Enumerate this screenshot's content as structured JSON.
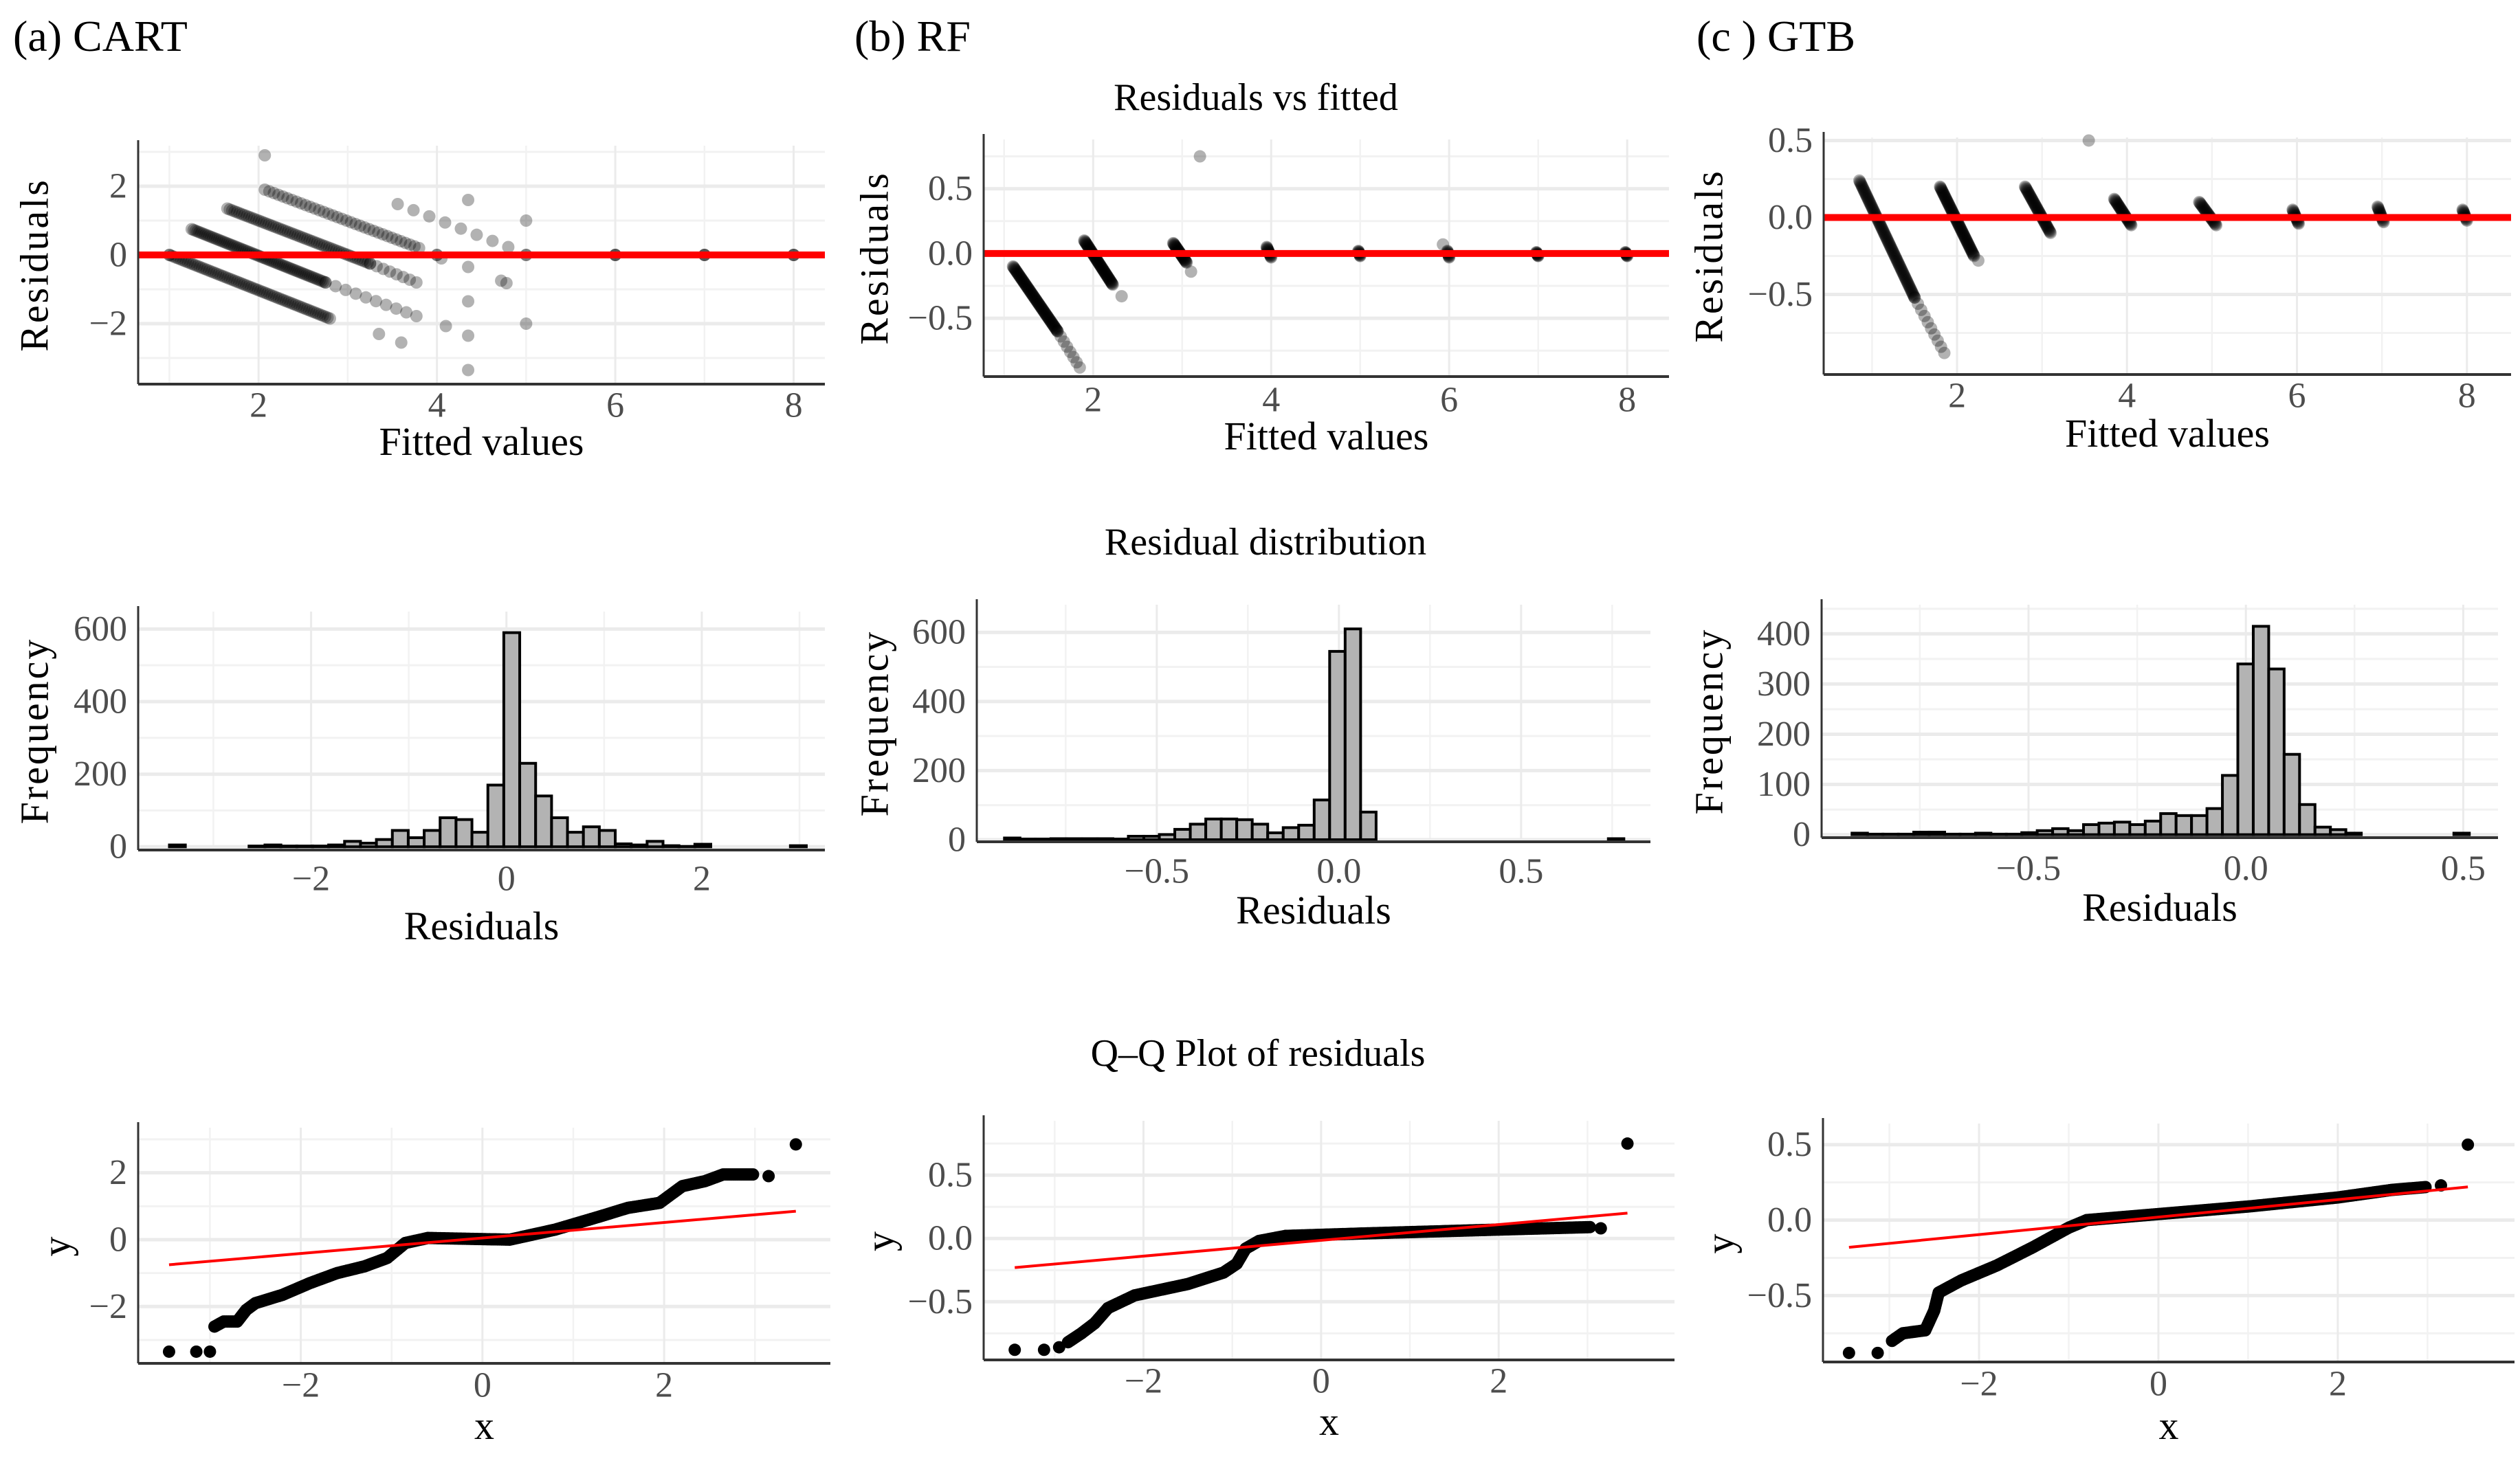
{
  "panel_titles": [
    "(a) CART",
    "(b) RF",
    "(c ) GTB"
  ],
  "section_titles": {
    "residuals_vs_fitted": "Residuals vs fitted",
    "residual_distribution": "Residual distribution",
    "qq_plot": "Q–Q Plot of residuals"
  },
  "colors": {
    "points": "#000000",
    "reference_line": "#ff0000",
    "bar_fill": "#b3b3b3",
    "bar_stroke": "#000000",
    "grid": "#ebebeb",
    "tick_text": "#4d4d4d"
  },
  "chart_data": [
    {
      "type": "scatter",
      "model": "CART",
      "section": "Residuals vs fitted",
      "xlabel": "Fitted values",
      "ylabel": "Residuals",
      "xlim": [
        0.65,
        8.35
      ],
      "ylim": [
        -3.76,
        3.18
      ],
      "xticks": [
        2,
        4,
        6,
        8
      ],
      "xtick_labels": [
        "2",
        "4",
        "6",
        "8"
      ],
      "yticks": [
        -2,
        0,
        2
      ],
      "ytick_labels": [
        "−2",
        "0",
        "2"
      ],
      "hline": 0,
      "bands": [
        {
          "from": [
            1.0,
            0.0
          ],
          "to": [
            2.8,
            -1.85
          ],
          "n": 70
        },
        {
          "from": [
            1.25,
            0.75
          ],
          "to": [
            2.75,
            -0.8
          ],
          "n": 70
        },
        {
          "from": [
            2.75,
            -0.8
          ],
          "to": [
            3.77,
            -1.78
          ],
          "n": 10
        },
        {
          "from": [
            1.65,
            1.35
          ],
          "to": [
            3.25,
            -0.25
          ],
          "n": 60
        },
        {
          "from": [
            3.25,
            -0.25
          ],
          "to": [
            3.77,
            -0.8
          ],
          "n": 8
        },
        {
          "from": [
            2.07,
            1.9
          ],
          "to": [
            3.8,
            0.2
          ],
          "n": 35
        },
        {
          "from": [
            3.56,
            1.48
          ],
          "to": [
            4.8,
            0.23
          ],
          "n": 8
        }
      ],
      "points": [
        [
          2.07,
          2.9
        ],
        [
          4.35,
          1.6
        ],
        [
          5.0,
          1.0
        ],
        [
          4.35,
          -0.35
        ],
        [
          4.72,
          -0.75
        ],
        [
          4.78,
          -0.82
        ],
        [
          4.35,
          -1.35
        ],
        [
          4.35,
          -2.35
        ],
        [
          4.35,
          -3.35
        ],
        [
          4.1,
          -2.07
        ],
        [
          5.0,
          -2.0
        ],
        [
          3.35,
          -2.3
        ],
        [
          3.6,
          -2.55
        ],
        [
          4.05,
          -0.1
        ],
        [
          1,
          0
        ],
        [
          4,
          0
        ],
        [
          5,
          0
        ],
        [
          6,
          0
        ],
        [
          7,
          0
        ],
        [
          8,
          0
        ],
        [
          4,
          0
        ],
        [
          5,
          0
        ],
        [
          6,
          0
        ],
        [
          7,
          0
        ],
        [
          8,
          0
        ],
        [
          6,
          0
        ],
        [
          7,
          0
        ],
        [
          8,
          0
        ]
      ]
    },
    {
      "type": "scatter",
      "model": "RF",
      "section": "Residuals vs fitted",
      "xlabel": "Fitted values",
      "ylabel": "Residuals",
      "xlim": [
        0.77,
        8.47
      ],
      "ylim": [
        -0.95,
        0.88
      ],
      "xticks": [
        2,
        4,
        6,
        8
      ],
      "xtick_labels": [
        "2",
        "4",
        "6",
        "8"
      ],
      "yticks": [
        -0.5,
        0,
        0.5
      ],
      "ytick_labels": [
        "−0.5",
        "0.0",
        "0.5"
      ],
      "hline": 0,
      "bands": [
        {
          "from": [
            1.1,
            -0.1
          ],
          "to": [
            1.6,
            -0.6
          ],
          "n": 80
        },
        {
          "from": [
            1.6,
            -0.6
          ],
          "to": [
            1.85,
            -0.88
          ],
          "n": 8
        },
        {
          "from": [
            1.9,
            0.1
          ],
          "to": [
            2.22,
            -0.24
          ],
          "n": 60
        },
        {
          "from": [
            2.9,
            0.08
          ],
          "to": [
            3.05,
            -0.07
          ],
          "n": 30
        },
        {
          "from": [
            3.95,
            0.05
          ],
          "to": [
            4.0,
            -0.03
          ],
          "n": 15
        },
        {
          "from": [
            4.98,
            0.02
          ],
          "to": [
            5.0,
            -0.02
          ],
          "n": 10
        },
        {
          "from": [
            5.98,
            0.02
          ],
          "to": [
            6.0,
            -0.03
          ],
          "n": 10
        },
        {
          "from": [
            6.98,
            0.01
          ],
          "to": [
            7.0,
            -0.02
          ],
          "n": 10
        },
        {
          "from": [
            7.98,
            0.01
          ],
          "to": [
            8.0,
            -0.02
          ],
          "n": 10
        }
      ],
      "points": [
        [
          2.32,
          -0.33
        ],
        [
          3.1,
          -0.14
        ],
        [
          3.2,
          0.75
        ],
        [
          5.93,
          0.07
        ]
      ]
    },
    {
      "type": "scatter",
      "model": "GTB",
      "section": "Residuals vs fitted",
      "xlabel": "Fitted values",
      "ylabel": "Residuals",
      "xlim": [
        0.43,
        8.52
      ],
      "ylim": [
        -1.02,
        0.52
      ],
      "xticks": [
        2,
        4,
        6,
        8
      ],
      "xtick_labels": [
        "2",
        "4",
        "6",
        "8"
      ],
      "yticks": [
        -0.5,
        0,
        0.5
      ],
      "ytick_labels": [
        "−0.5",
        "0.0",
        "0.5"
      ],
      "hline": 0,
      "bands": [
        {
          "from": [
            0.85,
            0.24
          ],
          "to": [
            1.5,
            -0.52
          ],
          "n": 90
        },
        {
          "from": [
            1.5,
            -0.52
          ],
          "to": [
            1.85,
            -0.88
          ],
          "n": 10
        },
        {
          "from": [
            1.8,
            0.2
          ],
          "to": [
            2.2,
            -0.25
          ],
          "n": 70
        },
        {
          "from": [
            2.8,
            0.2
          ],
          "to": [
            3.1,
            -0.1
          ],
          "n": 45
        },
        {
          "from": [
            3.85,
            0.12
          ],
          "to": [
            4.05,
            -0.05
          ],
          "n": 30
        },
        {
          "from": [
            4.85,
            0.1
          ],
          "to": [
            5.05,
            -0.05
          ],
          "n": 25
        },
        {
          "from": [
            5.95,
            0.05
          ],
          "to": [
            6.02,
            -0.04
          ],
          "n": 15
        },
        {
          "from": [
            6.95,
            0.07
          ],
          "to": [
            7.02,
            -0.03
          ],
          "n": 15
        },
        {
          "from": [
            7.95,
            0.05
          ],
          "to": [
            8.0,
            -0.02
          ],
          "n": 12
        }
      ],
      "points": [
        [
          2.25,
          -0.28
        ],
        [
          3.55,
          0.5
        ]
      ]
    },
    {
      "type": "histogram",
      "model": "CART",
      "section": "Residual distribution",
      "xlabel": "Residuals",
      "ylabel": "Frequency",
      "xlim": [
        -3.77,
        3.26
      ],
      "ylim": [
        -9,
        648
      ],
      "xticks": [
        -2,
        0,
        2
      ],
      "xtick_labels": [
        "−2",
        "0",
        "2"
      ],
      "yticks": [
        0,
        200,
        400,
        600
      ],
      "ytick_labels": [
        "0",
        "200",
        "400",
        "600"
      ],
      "bin_start": -3.45,
      "bin_width": 0.163,
      "counts": [
        5,
        0,
        0,
        0,
        0,
        2,
        5,
        2,
        2,
        2,
        5,
        15,
        10,
        20,
        45,
        25,
        45,
        80,
        75,
        40,
        170,
        590,
        230,
        140,
        80,
        40,
        55,
        45,
        8,
        5,
        15,
        3,
        1,
        7,
        0,
        0,
        0,
        0,
        0,
        3
      ]
    },
    {
      "type": "histogram",
      "model": "RF",
      "section": "Residual distribution",
      "xlabel": "Residuals",
      "ylabel": "Frequency",
      "xlim": [
        -0.994,
        0.855
      ],
      "ylim": [
        -6,
        680
      ],
      "xticks": [
        -0.5,
        0,
        0.5
      ],
      "xtick_labels": [
        "−0.5",
        "0.0",
        "0.5"
      ],
      "yticks": [
        0,
        200,
        400,
        600
      ],
      "ytick_labels": [
        "0",
        "200",
        "400",
        "600"
      ],
      "bin_start": -0.918,
      "bin_width": 0.0425,
      "counts": [
        5,
        2,
        2,
        3,
        3,
        3,
        3,
        2,
        10,
        10,
        15,
        30,
        45,
        60,
        60,
        58,
        45,
        20,
        35,
        42,
        115,
        545,
        610,
        80,
        0,
        0,
        0,
        0,
        0,
        0,
        0,
        0,
        0,
        0,
        0,
        0,
        0,
        0,
        0,
        3
      ]
    },
    {
      "type": "histogram",
      "model": "GTB",
      "section": "Residual distribution",
      "xlabel": "Residuals",
      "ylabel": "Frequency",
      "xlim": [
        -0.976,
        0.58
      ],
      "ylim": [
        -6,
        458
      ],
      "xticks": [
        -0.5,
        0,
        0.5
      ],
      "xtick_labels": [
        "−0.5",
        "0.0",
        "0.5"
      ],
      "yticks": [
        0,
        100,
        200,
        300,
        400
      ],
      "ytick_labels": [
        "0",
        "100",
        "200",
        "300",
        "400"
      ],
      "bin_start": -0.906,
      "bin_width": 0.0355,
      "counts": [
        3,
        1,
        1,
        1,
        5,
        5,
        1,
        1,
        3,
        1,
        1,
        4,
        8,
        12,
        8,
        20,
        23,
        25,
        20,
        27,
        42,
        38,
        38,
        52,
        118,
        340,
        415,
        330,
        160,
        60,
        15,
        10,
        3,
        0,
        0,
        0,
        0,
        0,
        0,
        3
      ]
    },
    {
      "type": "qq",
      "model": "CART",
      "section": "Q–Q Plot of residuals",
      "xlabel": "x",
      "ylabel": "y",
      "xlim": [
        -3.79,
        3.83
      ],
      "ylim": [
        -3.7,
        3.35
      ],
      "xticks": [
        -2,
        0,
        2
      ],
      "xtick_labels": [
        "−2",
        "0",
        "2"
      ],
      "yticks": [
        -2,
        0,
        2
      ],
      "ytick_labels": [
        "−2",
        "0",
        "2"
      ],
      "reference_line": [
        [
          -3.45,
          -0.75
        ],
        [
          3.45,
          0.85
        ]
      ],
      "curve": [
        [
          -2.95,
          -2.6
        ],
        [
          -2.85,
          -2.45
        ],
        [
          -2.7,
          -2.45
        ],
        [
          -2.6,
          -2.1
        ],
        [
          -2.5,
          -1.9
        ],
        [
          -2.2,
          -1.65
        ],
        [
          -1.9,
          -1.3
        ],
        [
          -1.6,
          -1.0
        ],
        [
          -1.3,
          -0.8
        ],
        [
          -1.05,
          -0.55
        ],
        [
          -0.85,
          -0.1
        ],
        [
          -0.6,
          0.05
        ],
        [
          0.3,
          0.0
        ],
        [
          0.8,
          0.3
        ],
        [
          1.3,
          0.7
        ],
        [
          1.6,
          0.95
        ],
        [
          1.95,
          1.1
        ],
        [
          2.2,
          1.6
        ],
        [
          2.45,
          1.75
        ],
        [
          2.65,
          1.95
        ],
        [
          3.0,
          1.95
        ]
      ],
      "points": [
        [
          -3.45,
          -3.35
        ],
        [
          -3.15,
          -3.35
        ],
        [
          -3.0,
          -3.35
        ],
        [
          3.15,
          1.9
        ],
        [
          3.45,
          2.85
        ]
      ]
    },
    {
      "type": "qq",
      "model": "RF",
      "section": "Q–Q Plot of residuals",
      "xlabel": "x",
      "ylabel": "y",
      "xlim": [
        -3.8,
        3.98
      ],
      "ylim": [
        -0.96,
        0.93
      ],
      "xticks": [
        -2,
        0,
        2
      ],
      "xtick_labels": [
        "−2",
        "0",
        "2"
      ],
      "yticks": [
        -0.5,
        0,
        0.5
      ],
      "ytick_labels": [
        "−0.5",
        "0.0",
        "0.5"
      ],
      "reference_line": [
        [
          -3.45,
          -0.23
        ],
        [
          3.45,
          0.2
        ]
      ],
      "curve": [
        [
          -2.85,
          -0.82
        ],
        [
          -2.7,
          -0.75
        ],
        [
          -2.55,
          -0.67
        ],
        [
          -2.4,
          -0.55
        ],
        [
          -2.1,
          -0.45
        ],
        [
          -1.5,
          -0.36
        ],
        [
          -1.1,
          -0.27
        ],
        [
          -0.95,
          -0.2
        ],
        [
          -0.85,
          -0.08
        ],
        [
          -0.7,
          -0.02
        ],
        [
          -0.4,
          0.02
        ],
        [
          0.5,
          0.04
        ],
        [
          2.0,
          0.07
        ],
        [
          3.05,
          0.09
        ]
      ],
      "points": [
        [
          -3.45,
          -0.88
        ],
        [
          -3.12,
          -0.88
        ],
        [
          -2.95,
          -0.86
        ],
        [
          3.15,
          0.08
        ],
        [
          3.45,
          0.75
        ]
      ]
    },
    {
      "type": "qq",
      "model": "GTB",
      "section": "Q–Q Plot of residuals",
      "xlabel": "x",
      "ylabel": "y",
      "xlim": [
        -3.74,
        3.97
      ],
      "ylim": [
        -0.94,
        0.64
      ],
      "xticks": [
        -2,
        0,
        2
      ],
      "xtick_labels": [
        "−2",
        "0",
        "2"
      ],
      "yticks": [
        -0.5,
        0,
        0.5
      ],
      "ytick_labels": [
        "−0.5",
        "0.0",
        "0.5"
      ],
      "reference_line": [
        [
          -3.45,
          -0.18
        ],
        [
          3.45,
          0.22
        ]
      ],
      "curve": [
        [
          -2.97,
          -0.8
        ],
        [
          -2.85,
          -0.75
        ],
        [
          -2.6,
          -0.73
        ],
        [
          -2.5,
          -0.6
        ],
        [
          -2.45,
          -0.48
        ],
        [
          -2.2,
          -0.4
        ],
        [
          -1.8,
          -0.3
        ],
        [
          -1.4,
          -0.18
        ],
        [
          -1.0,
          -0.05
        ],
        [
          -0.8,
          0.0
        ],
        [
          0,
          0.04
        ],
        [
          1.0,
          0.09
        ],
        [
          2.0,
          0.15
        ],
        [
          2.6,
          0.2
        ],
        [
          3.0,
          0.22
        ]
      ],
      "points": [
        [
          -3.45,
          -0.88
        ],
        [
          -3.13,
          -0.88
        ],
        [
          3.15,
          0.23
        ],
        [
          3.45,
          0.5
        ]
      ]
    }
  ]
}
